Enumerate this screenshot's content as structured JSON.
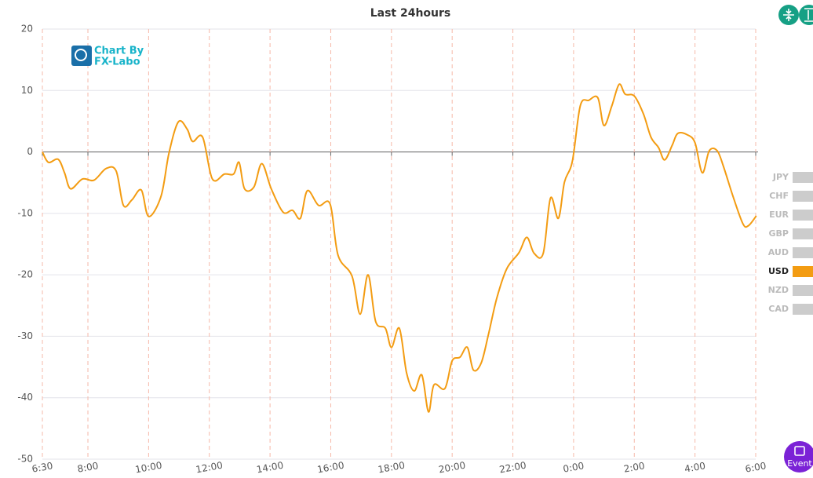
{
  "chart_data": {
    "type": "line",
    "title": "Last 24hours",
    "x": [
      0,
      0.2,
      0.52,
      0.73,
      0.93,
      1.32,
      1.7,
      2.1,
      2.43,
      2.67,
      2.95,
      3.26,
      3.5,
      3.91,
      4.17,
      4.48,
      4.77,
      4.95,
      5.28,
      5.6,
      6.0,
      6.3,
      6.48,
      6.66,
      6.97,
      7.23,
      7.54,
      7.93,
      8.24,
      8.5,
      8.73,
      9.1,
      9.48,
      9.74,
      10.2,
      10.47,
      10.73,
      10.98,
      11.3,
      11.5,
      11.76,
      12,
      12.25,
      12.5,
      12.72,
      12.9,
      13.26,
      13.5,
      13.76,
      14.0,
      14.2,
      14.46,
      14.7,
      14.97,
      15.3,
      15.7,
      15.96,
      16.2,
      16.5,
      16.74,
      17.0,
      17.2,
      17.46,
      17.72,
      18,
      18.3,
      18.5,
      18.76,
      19.0,
      19.2,
      19.5,
      19.8,
      20.05,
      20.3,
      20.5,
      20.75,
      20.93,
      21.24,
      21.5,
      21.74,
      21.97,
      22.23,
      22.44,
      22.75,
      23.08,
      23.26,
      23.52
    ],
    "series": [
      {
        "name": "USD",
        "color": "#f39c12",
        "values": [
          0,
          -1.7,
          -1.2,
          -3.4,
          -6,
          -4.4,
          -4.6,
          -2.7,
          -3.1,
          -8.7,
          -7.8,
          -6.2,
          -10.5,
          -7.2,
          -0.2,
          4.9,
          3.7,
          1.7,
          2.4,
          -4.4,
          -3.6,
          -3.6,
          -1.7,
          -6,
          -5.7,
          -1.9,
          -6,
          -9.8,
          -9.5,
          -10.8,
          -6.3,
          -8.7,
          -8.5,
          -16.8,
          -20.2,
          -26.4,
          -20,
          -27.6,
          -28.7,
          -31.8,
          -28.7,
          -36,
          -38.9,
          -36.3,
          -42.3,
          -37.9,
          -38.5,
          -34,
          -33.4,
          -31.8,
          -35.5,
          -34.3,
          -29.6,
          -23.8,
          -19,
          -16.4,
          -13.9,
          -16.5,
          -16.5,
          -7.5,
          -10.8,
          -4.9,
          -1.5,
          7.5,
          8.4,
          8.8,
          4.3,
          7.5,
          11,
          9.4,
          9.1,
          6.2,
          2.4,
          0.7,
          -1.3,
          1.1,
          3,
          2.8,
          1.5,
          -3.4,
          0.2,
          0.2,
          -2.4,
          -7.2,
          -11.7,
          -12,
          -10.4
        ]
      }
    ],
    "legend": [
      {
        "name": "JPY",
        "color": "#cccccc"
      },
      {
        "name": "CHF",
        "color": "#cccccc"
      },
      {
        "name": "EUR",
        "color": "#cccccc"
      },
      {
        "name": "GBP",
        "color": "#cccccc"
      },
      {
        "name": "AUD",
        "color": "#cccccc"
      },
      {
        "name": "USD",
        "color": "#f39c12"
      },
      {
        "name": "NZD",
        "color": "#cccccc"
      },
      {
        "name": "CAD",
        "color": "#cccccc"
      }
    ],
    "xlim": [
      0,
      23.5
    ],
    "xticks": [
      {
        "value": 0,
        "label": "6:30"
      },
      {
        "value": 1.5,
        "label": "8:00"
      },
      {
        "value": 3.5,
        "label": "10:00"
      },
      {
        "value": 5.5,
        "label": "12:00"
      },
      {
        "value": 7.5,
        "label": "14:00"
      },
      {
        "value": 9.5,
        "label": "16:00"
      },
      {
        "value": 11.5,
        "label": "18:00"
      },
      {
        "value": 13.5,
        "label": "20:00"
      },
      {
        "value": 15.5,
        "label": "22:00"
      },
      {
        "value": 17.5,
        "label": "0:00"
      },
      {
        "value": 19.5,
        "label": "2:00"
      },
      {
        "value": 21.5,
        "label": "4:00"
      },
      {
        "value": 23.5,
        "label": "6:00"
      }
    ],
    "ylim": [
      -50,
      20
    ],
    "yticks": [
      -50,
      -40,
      -30,
      -20,
      -10,
      0,
      10,
      20
    ],
    "grid": true
  },
  "watermark": [
    "Chart By",
    "FX-Labo"
  ],
  "event_button": "Event"
}
